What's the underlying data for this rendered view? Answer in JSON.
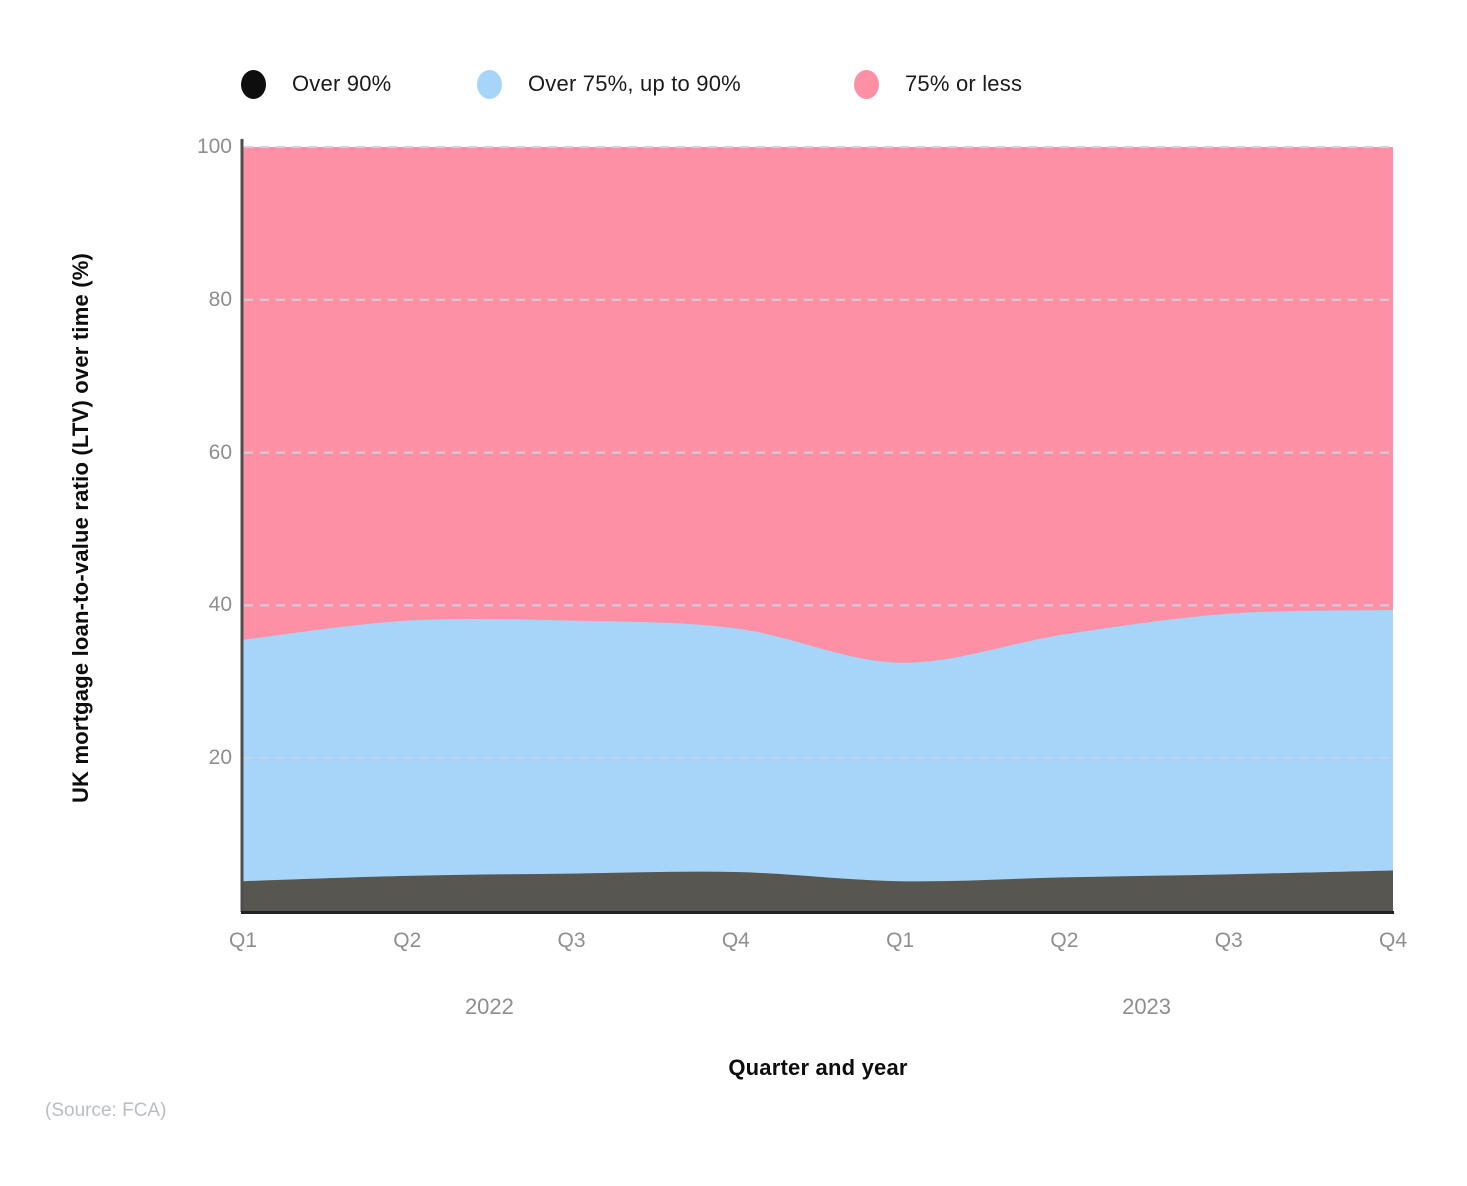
{
  "legend": {
    "items": [
      {
        "label": "Over 90%",
        "swatch_color": "#0e0e0e"
      },
      {
        "label": "Over 75%, up to 90%",
        "swatch_color": "#a6d5f9"
      },
      {
        "label": "75% or less",
        "swatch_color": "#fd90a5"
      }
    ]
  },
  "chart_data": {
    "type": "area",
    "stacked": true,
    "xlabel": "Quarter and year",
    "ylabel": "UK mortgage loan-to-value ratio (LTV) over time (%)",
    "x_categories": [
      "Q1",
      "Q2",
      "Q3",
      "Q4",
      "Q1",
      "Q2",
      "Q3",
      "Q4"
    ],
    "year_groups": [
      {
        "label": "2022",
        "from_index": 0,
        "to_index": 3
      },
      {
        "label": "2023",
        "from_index": 4,
        "to_index": 7
      }
    ],
    "yticks": [
      20,
      40,
      60,
      80,
      100
    ],
    "ylim": [
      0,
      100
    ],
    "grid": "horizontal-dashed",
    "grid_color": "#ccd3dc",
    "legend_position": "top",
    "series": [
      {
        "name": "Over 90%",
        "color": "#585651",
        "values": [
          3.9,
          4.6,
          4.9,
          5.1,
          3.9,
          4.4,
          4.8,
          5.3
        ]
      },
      {
        "name": "Over 75%, up to 90%",
        "color": "#a6d5f9",
        "values": [
          31.6,
          33.4,
          33.1,
          31.9,
          28.6,
          31.8,
          34.1,
          34.1
        ]
      },
      {
        "name": "75% or less",
        "color": "#fd90a5",
        "values": [
          64.5,
          62.0,
          62.0,
          63.0,
          67.5,
          63.8,
          61.1,
          60.6
        ]
      }
    ]
  },
  "source": "(Source: FCA)"
}
